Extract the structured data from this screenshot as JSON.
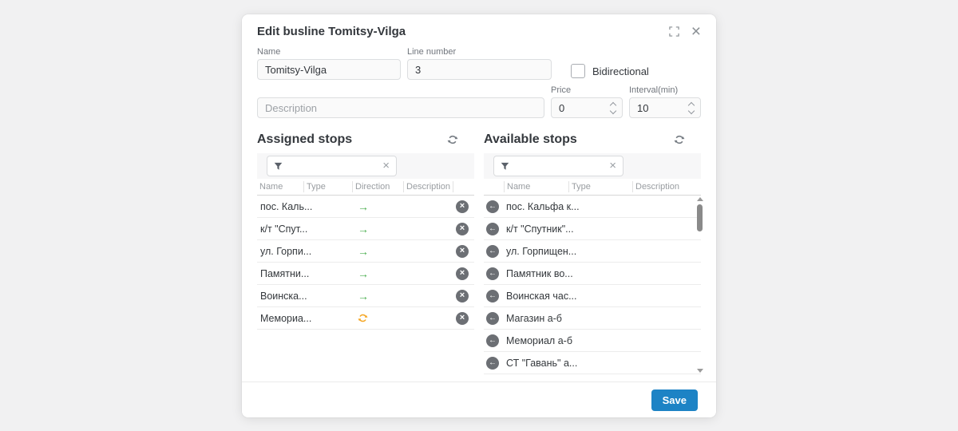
{
  "dialog": {
    "title": "Edit busline Tomitsy-Vilga"
  },
  "form": {
    "name": {
      "label": "Name",
      "value": "Tomitsy-Vilga"
    },
    "line_number": {
      "label": "Line number",
      "value": "3"
    },
    "bidirectional": {
      "label": "Bidirectional",
      "checked": false
    },
    "description": {
      "placeholder": "Description",
      "value": ""
    },
    "price": {
      "label": "Price",
      "value": "0"
    },
    "interval": {
      "label": "Interval(min)",
      "value": "10"
    }
  },
  "assigned_stops": {
    "title": "Assigned stops",
    "columns": {
      "name": "Name",
      "type": "Type",
      "direction": "Direction",
      "description": "Description"
    },
    "rows": [
      {
        "name": "пос. Каль...",
        "type": "",
        "direction": "forward",
        "description": ""
      },
      {
        "name": "к/т \"Спут...",
        "type": "",
        "direction": "forward",
        "description": ""
      },
      {
        "name": "ул. Горпи...",
        "type": "",
        "direction": "forward",
        "description": ""
      },
      {
        "name": "Памятни...",
        "type": "",
        "direction": "forward",
        "description": ""
      },
      {
        "name": "Воинска...",
        "type": "",
        "direction": "forward",
        "description": ""
      },
      {
        "name": "Мемориа...",
        "type": "",
        "direction": "bidirectional",
        "description": ""
      }
    ]
  },
  "available_stops": {
    "title": "Available stops",
    "columns": {
      "name": "Name",
      "type": "Type",
      "description": "Description"
    },
    "rows": [
      {
        "name": "пос. Кальфа к...",
        "type": "",
        "description": ""
      },
      {
        "name": "к/т \"Спутник\"...",
        "type": "",
        "description": ""
      },
      {
        "name": "ул. Горпищен...",
        "type": "",
        "description": ""
      },
      {
        "name": "Памятник во...",
        "type": "",
        "description": ""
      },
      {
        "name": "Воинская час...",
        "type": "",
        "description": ""
      },
      {
        "name": "Магазин а-б",
        "type": "",
        "description": ""
      },
      {
        "name": "Мемориал а-б",
        "type": "",
        "description": ""
      },
      {
        "name": "СТ \"Гавань\" а...",
        "type": "",
        "description": ""
      }
    ]
  },
  "footer": {
    "save_label": "Save"
  },
  "colors": {
    "accent_blue": "#1d83c5",
    "direction_forward_green": "#4caf50",
    "direction_bidirectional_orange": "#f5a623",
    "circle_button_gray": "#6c6f74"
  }
}
